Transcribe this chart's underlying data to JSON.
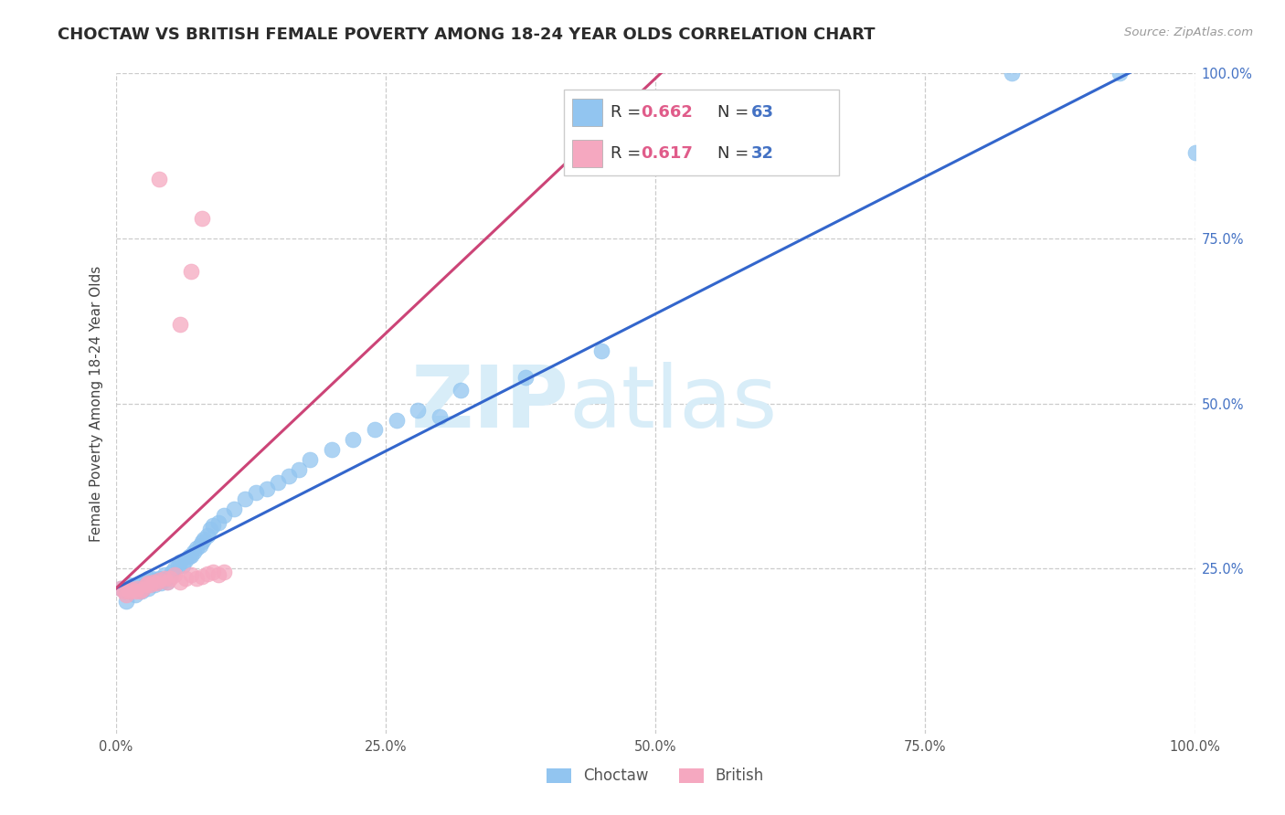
{
  "title": "CHOCTAW VS BRITISH FEMALE POVERTY AMONG 18-24 YEAR OLDS CORRELATION CHART",
  "source": "Source: ZipAtlas.com",
  "ylabel": "Female Poverty Among 18-24 Year Olds",
  "xlim": [
    0.0,
    1.0
  ],
  "ylim": [
    0.0,
    1.0
  ],
  "xtick_positions": [
    0.0,
    0.25,
    0.5,
    0.75,
    1.0
  ],
  "xtick_labels": [
    "0.0%",
    "25.0%",
    "50.0%",
    "75.0%",
    "100.0%"
  ],
  "ytick_positions": [
    0.25,
    0.5,
    0.75,
    1.0
  ],
  "ytick_labels": [
    "25.0%",
    "50.0%",
    "75.0%",
    "100.0%"
  ],
  "choctaw_color": "#92C5F0",
  "british_color": "#F5A8C0",
  "choctaw_line_color": "#3366CC",
  "british_line_color": "#CC4477",
  "watermark_text": "ZIPatlas",
  "watermark_color": "#D8EDF8",
  "legend_r_choctaw": "0.662",
  "legend_n_choctaw": "63",
  "legend_r_british": "0.617",
  "legend_n_british": "32",
  "r_color": "#E05C8A",
  "n_color": "#4472C4",
  "title_color": "#2B2B2B",
  "source_color": "#999999",
  "ylabel_color": "#444444",
  "tick_color": "#555555",
  "right_tick_color": "#4472C4",
  "grid_color": "#CCCCCC",
  "background": "#FFFFFF",
  "choctaw_x": [
    0.005,
    0.008,
    0.01,
    0.012,
    0.015,
    0.018,
    0.02,
    0.022,
    0.024,
    0.025,
    0.027,
    0.028,
    0.03,
    0.03,
    0.032,
    0.033,
    0.035,
    0.036,
    0.038,
    0.04,
    0.042,
    0.044,
    0.045,
    0.048,
    0.05,
    0.052,
    0.055,
    0.058,
    0.06,
    0.062,
    0.065,
    0.068,
    0.07,
    0.072,
    0.075,
    0.078,
    0.08,
    0.082,
    0.085,
    0.088,
    0.09,
    0.095,
    0.1,
    0.11,
    0.12,
    0.13,
    0.14,
    0.15,
    0.16,
    0.17,
    0.18,
    0.2,
    0.22,
    0.24,
    0.26,
    0.28,
    0.3,
    0.32,
    0.38,
    0.45,
    0.83,
    0.93,
    1.0
  ],
  "choctaw_y": [
    0.22,
    0.215,
    0.2,
    0.225,
    0.218,
    0.21,
    0.225,
    0.22,
    0.215,
    0.23,
    0.222,
    0.228,
    0.235,
    0.22,
    0.228,
    0.235,
    0.23,
    0.225,
    0.232,
    0.235,
    0.228,
    0.232,
    0.24,
    0.23,
    0.238,
    0.245,
    0.25,
    0.255,
    0.26,
    0.255,
    0.262,
    0.268,
    0.27,
    0.275,
    0.28,
    0.285,
    0.29,
    0.295,
    0.3,
    0.31,
    0.315,
    0.32,
    0.33,
    0.34,
    0.355,
    0.365,
    0.37,
    0.38,
    0.39,
    0.4,
    0.415,
    0.43,
    0.445,
    0.46,
    0.475,
    0.49,
    0.48,
    0.52,
    0.54,
    0.58,
    1.0,
    1.0,
    0.88
  ],
  "british_x": [
    0.005,
    0.008,
    0.01,
    0.012,
    0.015,
    0.018,
    0.02,
    0.022,
    0.025,
    0.028,
    0.03,
    0.032,
    0.035,
    0.038,
    0.04,
    0.045,
    0.048,
    0.05,
    0.055,
    0.06,
    0.065,
    0.07,
    0.075,
    0.08,
    0.085,
    0.09,
    0.095,
    0.1,
    0.06,
    0.07,
    0.08,
    0.04
  ],
  "british_y": [
    0.22,
    0.215,
    0.21,
    0.215,
    0.218,
    0.215,
    0.22,
    0.215,
    0.218,
    0.225,
    0.228,
    0.225,
    0.23,
    0.228,
    0.232,
    0.235,
    0.23,
    0.235,
    0.24,
    0.23,
    0.235,
    0.24,
    0.235,
    0.238,
    0.242,
    0.245,
    0.24,
    0.245,
    0.62,
    0.7,
    0.78,
    0.84
  ]
}
